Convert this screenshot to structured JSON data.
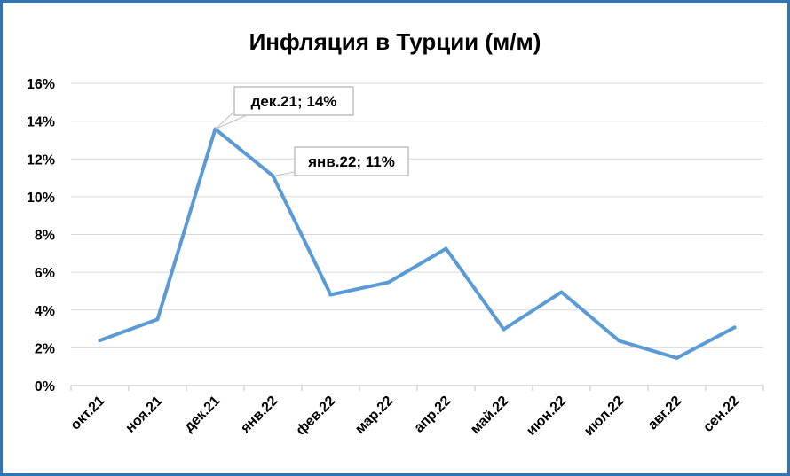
{
  "chart_data": {
    "type": "line",
    "title": "Инфляция в Турции (м/м)",
    "categories": [
      "окт.21",
      "ноя.21",
      "дек.21",
      "янв.22",
      "фев.22",
      "мар.22",
      "апр.22",
      "май.22",
      "июн.22",
      "июл.22",
      "авг.22",
      "сен.22"
    ],
    "series": [
      {
        "values": [
          2.39,
          3.51,
          13.58,
          11.1,
          4.81,
          5.46,
          7.25,
          2.98,
          4.95,
          2.37,
          1.46,
          3.08
        ]
      }
    ],
    "y_ticks": [
      "0%",
      "2%",
      "4%",
      "6%",
      "8%",
      "10%",
      "12%",
      "14%",
      "16%"
    ],
    "ylim": [
      0,
      16
    ],
    "grid": true,
    "legend": "none",
    "annotations": [
      {
        "category": "дек.21",
        "text": "дек.21; 14%"
      },
      {
        "category": "янв.22",
        "text": "янв.22; 11%"
      }
    ],
    "colors": {
      "line": "#5b9bd5",
      "frame": "#2e75b6",
      "grid": "#d9d9d9",
      "callout_border": "#bfbfbf"
    }
  }
}
